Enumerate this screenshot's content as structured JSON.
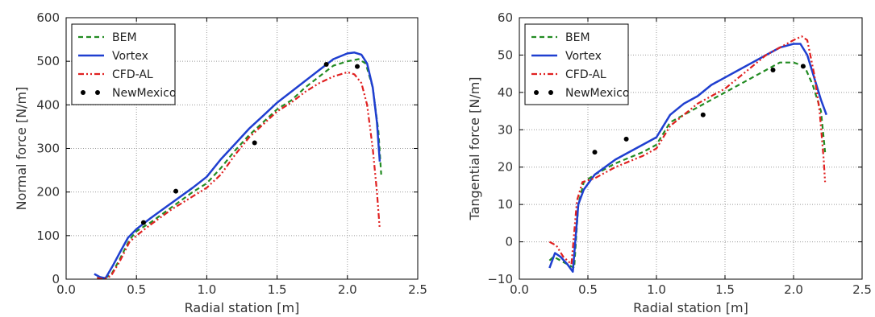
{
  "chart_data": [
    {
      "type": "line",
      "xlabel": "Radial station [m]",
      "ylabel": "Normal force [N/m]",
      "xlim": [
        0.0,
        2.5
      ],
      "ylim": [
        0,
        600
      ],
      "xticks": [
        "0.0",
        "0.5",
        "1.0",
        "1.5",
        "2.0",
        "2.5"
      ],
      "yticks": [
        "0",
        "100",
        "200",
        "300",
        "400",
        "500",
        "600"
      ],
      "grid": true,
      "legend_position": "top-left",
      "series": [
        {
          "name": "BEM",
          "color": "#228B22",
          "style": "dashed",
          "x": [
            0.22,
            0.27,
            0.32,
            0.38,
            0.45,
            0.5,
            0.6,
            0.75,
            0.9,
            1.0,
            1.1,
            1.2,
            1.3,
            1.4,
            1.5,
            1.6,
            1.7,
            1.8,
            1.9,
            2.0,
            2.08,
            2.13,
            2.18,
            2.22,
            2.24
          ],
          "y": [
            5,
            2,
            10,
            45,
            90,
            110,
            130,
            165,
            200,
            220,
            255,
            295,
            330,
            360,
            390,
            410,
            440,
            465,
            490,
            500,
            505,
            495,
            440,
            340,
            240
          ]
        },
        {
          "name": "Vortex",
          "color": "#1f3fd0",
          "style": "solid",
          "x": [
            0.2,
            0.24,
            0.28,
            0.33,
            0.38,
            0.44,
            0.5,
            0.6,
            0.75,
            0.9,
            1.0,
            1.1,
            1.2,
            1.3,
            1.4,
            1.5,
            1.6,
            1.7,
            1.8,
            1.9,
            2.0,
            2.05,
            2.1,
            2.14,
            2.18,
            2.21,
            2.23
          ],
          "y": [
            12,
            5,
            2,
            30,
            60,
            95,
            115,
            140,
            175,
            210,
            235,
            275,
            310,
            345,
            375,
            405,
            430,
            455,
            480,
            505,
            518,
            520,
            515,
            495,
            440,
            360,
            270
          ]
        },
        {
          "name": "CFD-AL",
          "color": "#e02020",
          "style": "dashdot",
          "x": [
            0.22,
            0.27,
            0.32,
            0.38,
            0.45,
            0.5,
            0.6,
            0.75,
            0.9,
            1.0,
            1.1,
            1.2,
            1.3,
            1.4,
            1.5,
            1.6,
            1.7,
            1.8,
            1.9,
            2.0,
            2.05,
            2.1,
            2.14,
            2.18,
            2.21,
            2.23
          ],
          "y": [
            3,
            0,
            8,
            40,
            85,
            100,
            125,
            160,
            190,
            210,
            240,
            285,
            325,
            355,
            385,
            405,
            430,
            450,
            465,
            475,
            470,
            450,
            400,
            300,
            200,
            115
          ]
        },
        {
          "name": "NewMexico",
          "color": "#000000",
          "style": "markers",
          "x": [
            0.55,
            0.78,
            1.34,
            1.85,
            2.07
          ],
          "y": [
            130,
            202,
            313,
            493,
            488
          ]
        }
      ]
    },
    {
      "type": "line",
      "xlabel": "Radial station [m]",
      "ylabel": "Tangential force [N/m]",
      "xlim": [
        0.0,
        2.5
      ],
      "ylim": [
        -10,
        60
      ],
      "xticks": [
        "0.0",
        "0.5",
        "1.0",
        "1.5",
        "2.0",
        "2.5"
      ],
      "yticks": [
        "−10",
        "0",
        "10",
        "20",
        "30",
        "40",
        "50",
        "60"
      ],
      "grid": true,
      "legend_position": "top-left",
      "series": [
        {
          "name": "BEM",
          "color": "#228B22",
          "style": "dashed",
          "x": [
            0.22,
            0.25,
            0.3,
            0.35,
            0.4,
            0.43,
            0.47,
            0.55,
            0.7,
            0.9,
            1.0,
            1.05,
            1.1,
            1.2,
            1.3,
            1.4,
            1.5,
            1.6,
            1.7,
            1.8,
            1.9,
            2.0,
            2.08,
            2.14,
            2.2,
            2.23
          ],
          "y": [
            -5,
            -4,
            -5,
            -6,
            -7,
            10,
            16,
            18,
            21,
            24,
            26,
            29,
            32,
            34,
            36,
            38,
            40,
            42,
            44,
            46,
            48,
            48,
            47,
            42,
            35,
            24
          ]
        },
        {
          "name": "Vortex",
          "color": "#1f3fd0",
          "style": "solid",
          "x": [
            0.22,
            0.26,
            0.3,
            0.35,
            0.39,
            0.43,
            0.47,
            0.55,
            0.7,
            0.9,
            1.0,
            1.05,
            1.1,
            1.2,
            1.3,
            1.4,
            1.5,
            1.6,
            1.7,
            1.8,
            1.9,
            2.0,
            2.05,
            2.1,
            2.15,
            2.2,
            2.24
          ],
          "y": [
            -7,
            -3,
            -4,
            -6,
            -8,
            10,
            14,
            18,
            22,
            26,
            28,
            31,
            34,
            37,
            39,
            42,
            44,
            46,
            48,
            50,
            52,
            53,
            53,
            50,
            44,
            38,
            34
          ]
        },
        {
          "name": "CFD-AL",
          "color": "#e02020",
          "style": "dashdot",
          "x": [
            0.22,
            0.27,
            0.32,
            0.38,
            0.42,
            0.46,
            0.55,
            0.7,
            0.9,
            1.0,
            1.05,
            1.1,
            1.2,
            1.3,
            1.4,
            1.5,
            1.6,
            1.7,
            1.8,
            1.9,
            2.0,
            2.06,
            2.1,
            2.15,
            2.19,
            2.22,
            2.23
          ],
          "y": [
            0,
            -1,
            -4,
            -6,
            11,
            16,
            17,
            20,
            23,
            25,
            28,
            31,
            34,
            37,
            39,
            41,
            44,
            47,
            50,
            52,
            54,
            55,
            54,
            45,
            35,
            22,
            16
          ]
        },
        {
          "name": "NewMexico",
          "color": "#000000",
          "style": "markers",
          "x": [
            0.55,
            0.78,
            1.34,
            1.85,
            2.07
          ],
          "y": [
            24,
            27.5,
            34,
            46,
            47
          ]
        }
      ]
    }
  ]
}
